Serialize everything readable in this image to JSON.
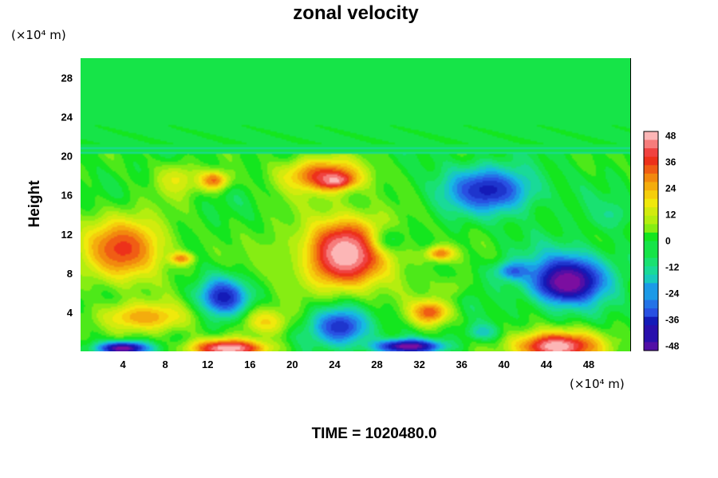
{
  "chart_data": {
    "type": "heatmap",
    "title": "zonal velocity",
    "ylabel": "Height",
    "x_unit_label": "(×10⁴ m)",
    "y_unit_label": "(×10⁴ m)",
    "footer": "TIME = 1020480.0",
    "xlim": [
      0,
      52
    ],
    "ylim": [
      0,
      30
    ],
    "x_ticks": [
      4,
      8,
      12,
      16,
      20,
      24,
      28,
      32,
      36,
      40,
      44,
      48
    ],
    "y_ticks": [
      4,
      8,
      12,
      16,
      20,
      24,
      28
    ],
    "colorbar": {
      "min": -50,
      "max": 50,
      "ticks": [
        48,
        36,
        24,
        12,
        0,
        -12,
        -24,
        -36,
        -48
      ],
      "colors": [
        "#7b0ea0",
        "#1010b0",
        "#2a55e6",
        "#16b8e8",
        "#1ae08a",
        "#14e61e",
        "#a8ef10",
        "#f6e80c",
        "#f3920d",
        "#ec1f1c",
        "#fcb6b6"
      ]
    },
    "features": [
      {
        "x": 0,
        "y": 20.7,
        "rx": 60,
        "ry": 0.35,
        "value": -6
      },
      {
        "x": 4,
        "y": 10.5,
        "rx": 5.2,
        "ry": 4.3,
        "value": 38
      },
      {
        "x": 9.5,
        "y": 9.5,
        "rx": 1.4,
        "ry": 0.8,
        "value": 32
      },
      {
        "x": 12.5,
        "y": 17.5,
        "rx": 2.0,
        "ry": 1.3,
        "value": 34
      },
      {
        "x": 9,
        "y": 17.5,
        "rx": 2.5,
        "ry": 2.2,
        "value": 18
      },
      {
        "x": 13.5,
        "y": 5.5,
        "rx": 3.0,
        "ry": 2.6,
        "value": -40
      },
      {
        "x": 6,
        "y": 3.5,
        "rx": 5.5,
        "ry": 2.0,
        "value": 28
      },
      {
        "x": 4,
        "y": 0.3,
        "rx": 3.2,
        "ry": 0.9,
        "value": -52
      },
      {
        "x": 14,
        "y": 0.3,
        "rx": 4.8,
        "ry": 1.2,
        "value": 52
      },
      {
        "x": 17.5,
        "y": 3.0,
        "rx": 2.8,
        "ry": 1.8,
        "value": 22
      },
      {
        "x": 23,
        "y": 18.0,
        "rx": 5.0,
        "ry": 2.3,
        "value": 38
      },
      {
        "x": 24,
        "y": 17.5,
        "rx": 2.0,
        "ry": 1.0,
        "value": 50
      },
      {
        "x": 25,
        "y": 10.0,
        "rx": 6.2,
        "ry": 5.0,
        "value": 40
      },
      {
        "x": 25,
        "y": 10.0,
        "rx": 3.1,
        "ry": 2.9,
        "value": 52
      },
      {
        "x": 29.5,
        "y": 11.5,
        "rx": 2.2,
        "ry": 1.8,
        "value": -2
      },
      {
        "x": 34,
        "y": 10.0,
        "rx": 1.8,
        "ry": 1.0,
        "value": 32
      },
      {
        "x": 18,
        "y": 9.5,
        "rx": 3.5,
        "ry": 3.0,
        "value": 8
      },
      {
        "x": 24.5,
        "y": 2.5,
        "rx": 3.5,
        "ry": 2.5,
        "value": -36
      },
      {
        "x": 33,
        "y": 4.0,
        "rx": 2.4,
        "ry": 1.7,
        "value": 36
      },
      {
        "x": 31,
        "y": 0.5,
        "rx": 4.0,
        "ry": 0.9,
        "value": -52
      },
      {
        "x": 38.5,
        "y": 16.5,
        "rx": 5.5,
        "ry": 3.0,
        "value": -38
      },
      {
        "x": 46,
        "y": 7.5,
        "rx": 5.0,
        "ry": 3.5,
        "value": -40
      },
      {
        "x": 46,
        "y": 7.0,
        "rx": 3.0,
        "ry": 2.0,
        "value": -52
      },
      {
        "x": 41,
        "y": 8.2,
        "rx": 2.2,
        "ry": 1.2,
        "value": -30
      },
      {
        "x": 45,
        "y": 0.5,
        "rx": 5.2,
        "ry": 2.0,
        "value": 52
      },
      {
        "x": 38,
        "y": 2.0,
        "rx": 2.0,
        "ry": 1.2,
        "value": -16
      },
      {
        "x": 35,
        "y": 6.5,
        "rx": 2.0,
        "ry": 1.5,
        "value": 8
      },
      {
        "x": 50,
        "y": 14.0,
        "rx": 2.5,
        "ry": 2.0,
        "value": -10
      }
    ]
  }
}
